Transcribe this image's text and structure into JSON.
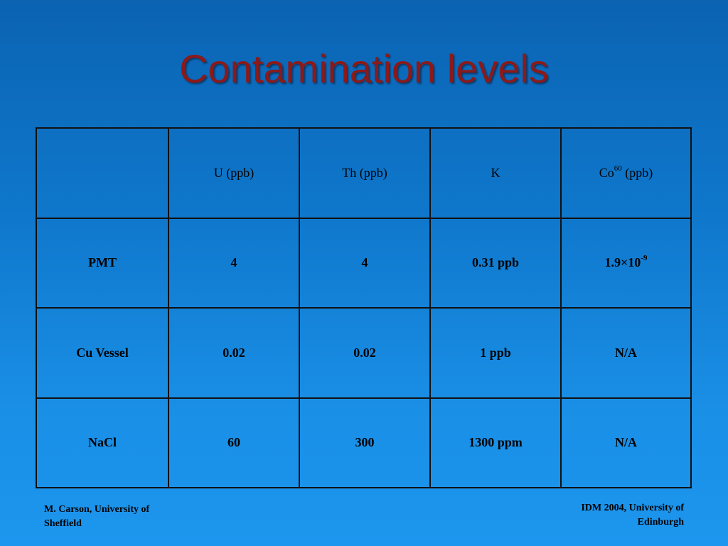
{
  "slide": {
    "title": "Contamination levels"
  },
  "table": {
    "header": {
      "corner": "",
      "u": "U (ppb)",
      "th": "Th (ppb)",
      "k": "K",
      "co_base": "Co",
      "co_sup": "60",
      "co_unit": " (ppb)"
    },
    "rows": [
      {
        "label": "PMT",
        "u": "4",
        "th": "4",
        "k": "0.31 ppb",
        "co_base": "1.9×10",
        "co_sup": "-9"
      },
      {
        "label": "Cu Vessel",
        "u": "0.02",
        "th": "0.02",
        "k": "1 ppb",
        "co": "N/A"
      },
      {
        "label": "NaCl",
        "u": "60",
        "th": "300",
        "k": "1300 ppm",
        "co": "N/A"
      }
    ]
  },
  "footer": {
    "left_line1": "M. Carson, University of",
    "left_line2": "Sheffield",
    "right_line1": "IDM 2004, University of",
    "right_line2": "Edinburgh"
  },
  "colors": {
    "title": "#8b1a1a",
    "background_top": "#0b63b2",
    "background_bottom": "#1c96ee",
    "grid": "#111111"
  }
}
